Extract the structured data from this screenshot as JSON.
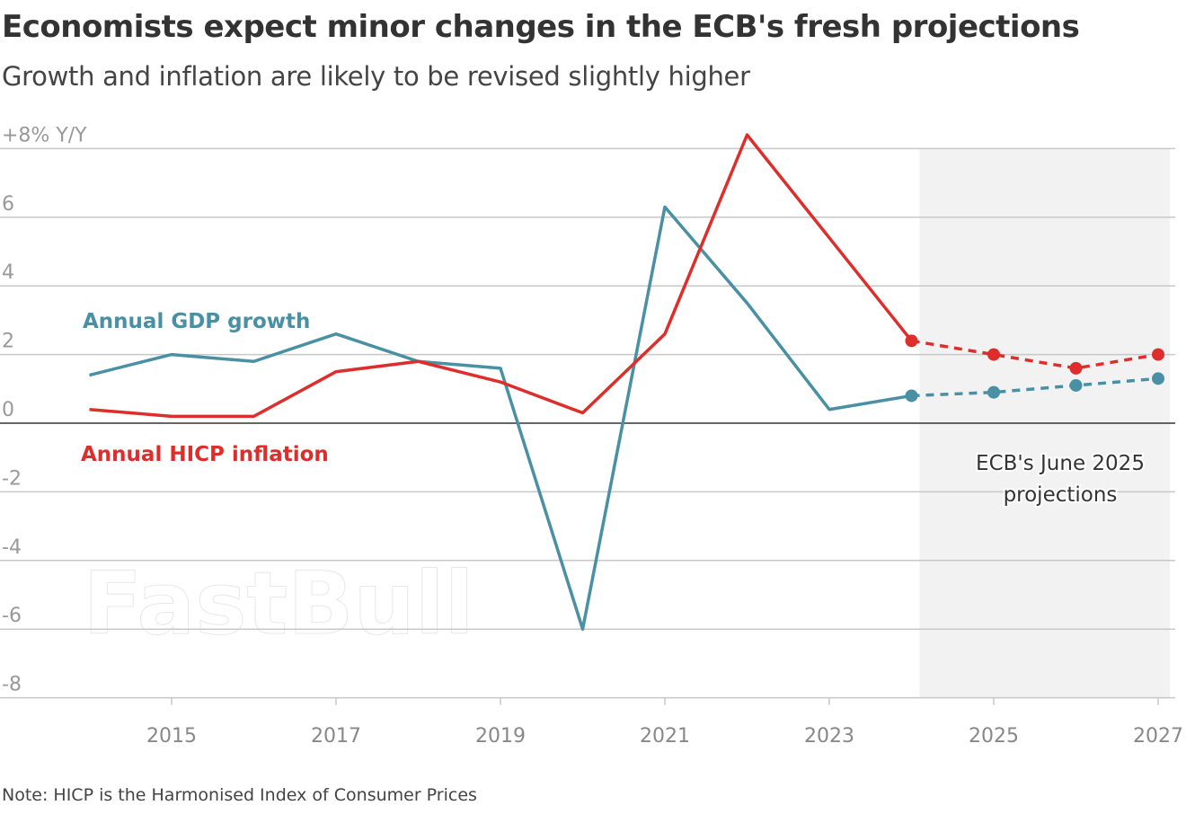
{
  "chart_data": {
    "type": "line",
    "title": "Economists expect minor changes in the ECB's fresh projections",
    "subtitle": "Growth and inflation are likely to be revised slightly higher",
    "ylabel": "+8% Y/Y",
    "ylim": [
      -8,
      8
    ],
    "yticks": [
      "+8% Y/Y",
      "6",
      "4",
      "2",
      "0",
      "-2",
      "-4",
      "-6",
      "-8"
    ],
    "xlim": [
      2014,
      2027
    ],
    "xticks": [
      "2015",
      "2017",
      "2019",
      "2021",
      "2023",
      "2025",
      "2027"
    ],
    "grid": true,
    "x": [
      2014,
      2015,
      2016,
      2017,
      2018,
      2019,
      2020,
      2021,
      2022,
      2023,
      2024,
      2025,
      2026,
      2027
    ],
    "series": [
      {
        "name": "Annual GDP growth",
        "color": "#4a90a4",
        "values": [
          1.4,
          2.0,
          1.8,
          2.6,
          1.8,
          1.6,
          -6.0,
          6.3,
          3.5,
          0.4,
          0.8,
          0.9,
          1.1,
          1.3
        ]
      },
      {
        "name": "Annual HICP inflation",
        "color": "#dd2e2b",
        "values": [
          0.4,
          0.2,
          0.2,
          1.5,
          1.8,
          1.2,
          0.3,
          2.6,
          8.4,
          5.4,
          2.4,
          2.0,
          1.6,
          2.0
        ]
      }
    ],
    "projection_start": 2024,
    "projection_label": [
      "ECB's June 2025",
      "projections"
    ],
    "note": "Note: HICP is the Harmonised Index of Consumer Prices"
  },
  "watermark": "FastBull"
}
